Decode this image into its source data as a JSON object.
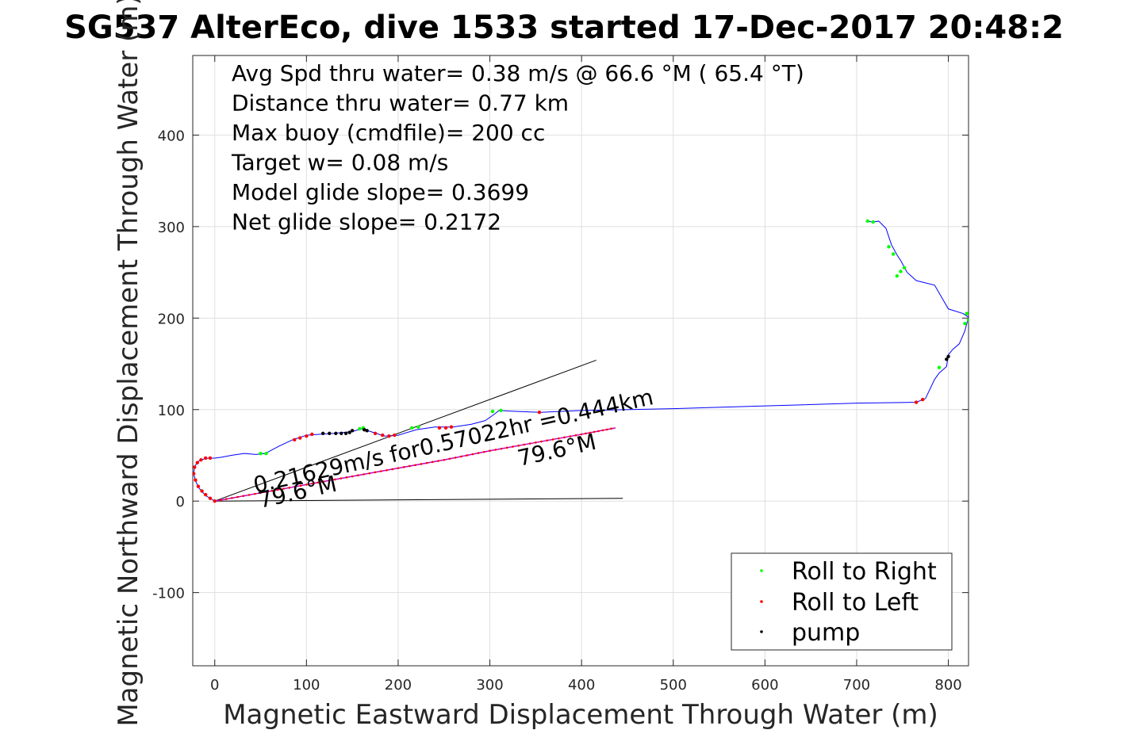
{
  "chart_data": {
    "type": "scatter",
    "title": "SG537 AlterEco, dive 1533 started 17-Dec-2017 20:48:2",
    "xlabel": "Magnetic Eastward Displacement Through Water (m)",
    "ylabel": "Magnetic Northward Displacement Through Water (m)",
    "xlim": [
      -24,
      822
    ],
    "ylim": [
      -180,
      487
    ],
    "xticks": [
      0,
      100,
      200,
      300,
      400,
      500,
      600,
      700,
      800
    ],
    "xtick_labels": [
      "0",
      "100",
      "200",
      "300",
      "400",
      "500",
      "600",
      "700",
      "800"
    ],
    "yticks": [
      -100,
      0,
      100,
      200,
      300,
      400
    ],
    "ytick_labels": [
      "-100",
      "0",
      "100",
      "200",
      "300",
      "400"
    ],
    "grid": true,
    "legend_position": "bottom-right",
    "annotations": [
      "Avg Spd thru water=  0.38 m/s @  66.6 °M ( 65.4 °T)",
      "Distance thru water=  0.77 km",
      "Max buoy (cmdfile)= 200 cc",
      "Target w= 0.08 m/s",
      "Model glide slope= 0.3699",
      "Net glide slope= 0.2172"
    ],
    "path_labels": {
      "speed": "0.21629m/s for0.57022hr =0.444km",
      "heading_start": "79.6°M",
      "heading_mid": "79.6°M"
    },
    "colors": {
      "track": "#0000ff",
      "roll_right": "#00ff00",
      "roll_left": "#ff0000",
      "pump": "#000000",
      "net_path": "#c000c0",
      "reference_line": "#000000"
    },
    "track": {
      "x": [
        0,
        -10,
        -17,
        -21,
        -23,
        -22,
        -17,
        -12,
        -7,
        0,
        8,
        18,
        32,
        45,
        55,
        70,
        85,
        100,
        115,
        130,
        150,
        160,
        170,
        185,
        200,
        220,
        240,
        260,
        280,
        295,
        305,
        310,
        330,
        355,
        400,
        500,
        600,
        700,
        765,
        775,
        785,
        790,
        798,
        800,
        805,
        812,
        818,
        822,
        816,
        800,
        785,
        765,
        755,
        748,
        744,
        738,
        732,
        724,
        718,
        710
      ],
      "y": [
        0,
        6,
        14,
        22,
        30,
        38,
        44,
        46,
        47,
        47,
        48,
        50,
        52,
        51,
        52,
        60,
        67,
        72,
        73,
        74,
        76,
        79,
        76,
        71,
        72,
        78,
        81,
        81,
        84,
        88,
        95,
        99,
        98,
        97,
        99,
        101,
        104,
        107,
        108,
        112,
        133,
        140,
        147,
        160,
        166,
        172,
        186,
        201,
        205,
        210,
        236,
        241,
        250,
        263,
        269,
        280,
        298,
        306,
        305,
        306
      ]
    },
    "roll_right": {
      "x": [
        50,
        56,
        158,
        162,
        215,
        222,
        303,
        312,
        744,
        748,
        752,
        735,
        740,
        790,
        818,
        822,
        820,
        712,
        718
      ],
      "y": [
        52,
        52,
        79,
        80,
        80,
        81,
        98,
        99,
        246,
        251,
        255,
        278,
        270,
        146,
        194,
        198,
        205,
        306,
        305
      ]
    },
    "roll_left": {
      "x": [
        0,
        -5,
        -10,
        -14,
        -18,
        -21,
        -23,
        -22,
        -19,
        -15,
        -10,
        -5,
        87,
        93,
        100,
        106,
        175,
        183,
        190,
        196,
        245,
        252,
        258,
        354,
        765,
        772
      ],
      "y": [
        0,
        3,
        7,
        11,
        16,
        23,
        30,
        37,
        42,
        45,
        47,
        47,
        67,
        69,
        71,
        73,
        74,
        72,
        71,
        72,
        80,
        80,
        81,
        97,
        108,
        111
      ],
      "path_x": [
        0,
        50,
        100,
        150,
        200,
        250,
        300,
        350,
        400,
        437
      ],
      "path_y": [
        0,
        9,
        18,
        27,
        36,
        45,
        55,
        64,
        73,
        80
      ]
    },
    "pump": {
      "x": [
        118,
        125,
        132,
        138,
        143,
        147,
        150,
        163,
        166,
        800,
        798
      ],
      "y": [
        74,
        74,
        74,
        74,
        74,
        75,
        77,
        78,
        77,
        158,
        155
      ]
    },
    "reference_lines": [
      {
        "x": [
          0,
          416
        ],
        "y": [
          0,
          154
        ]
      },
      {
        "x": [
          0,
          445
        ],
        "y": [
          0,
          3
        ]
      }
    ],
    "series": [
      {
        "name": "Roll to Right",
        "color": "#00ff00"
      },
      {
        "name": "Roll to Left",
        "color": "#ff0000"
      },
      {
        "name": "pump",
        "color": "#000000"
      }
    ]
  }
}
